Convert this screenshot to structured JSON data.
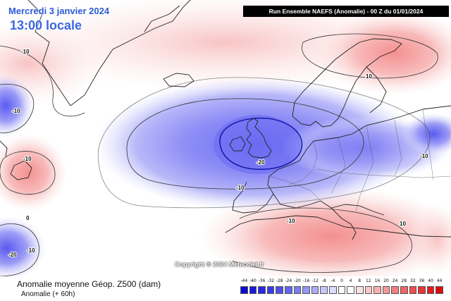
{
  "header": {
    "date": "Mercredi 3 janvier 2024",
    "local_time": "13:00 locale",
    "run_info": "Run Ensemble NAEFS  (Anomalie)  - 00 Z du 01/01/2024"
  },
  "footer": {
    "title": "Anomalie moyenne Géop. Z500 (dam)",
    "subtitle": "Anomalie (+ 60h)"
  },
  "copyright": "Copyright © 2024 Meteociel.fr",
  "contour_labels": [
    "-10",
    "-10",
    "-10",
    "-10",
    "-20",
    "-10",
    "-10",
    "-10",
    "-20",
    "0",
    "10",
    "10"
  ],
  "legend": {
    "values": [
      "-44",
      "-40",
      "-36",
      "-32",
      "-28",
      "-24",
      "-20",
      "-16",
      "-12",
      "-8",
      "-4",
      "0",
      "4",
      "8",
      "12",
      "16",
      "20",
      "24",
      "28",
      "32",
      "36",
      "40",
      "44"
    ],
    "colors": [
      "#0b0bd8",
      "#1a1adf",
      "#2a2ae4",
      "#3b3be9",
      "#4f4fed",
      "#6464f1",
      "#7c7cf4",
      "#9595f7",
      "#adadf9",
      "#c6c6fb",
      "#dcdcfd",
      "#ffffff",
      "#ffffff",
      "#fde0e0",
      "#fbc9c9",
      "#f9b0b0",
      "#f79898",
      "#f47e7e",
      "#f16666",
      "#ed4d4d",
      "#e93535",
      "#e41e1e",
      "#df0b0b"
    ]
  },
  "colors": {
    "negative_anomaly": "#6f6ff3",
    "positive_anomaly": "#f6a6a6",
    "land_outline": "#222222",
    "title_blue": "#2a5bd7"
  }
}
